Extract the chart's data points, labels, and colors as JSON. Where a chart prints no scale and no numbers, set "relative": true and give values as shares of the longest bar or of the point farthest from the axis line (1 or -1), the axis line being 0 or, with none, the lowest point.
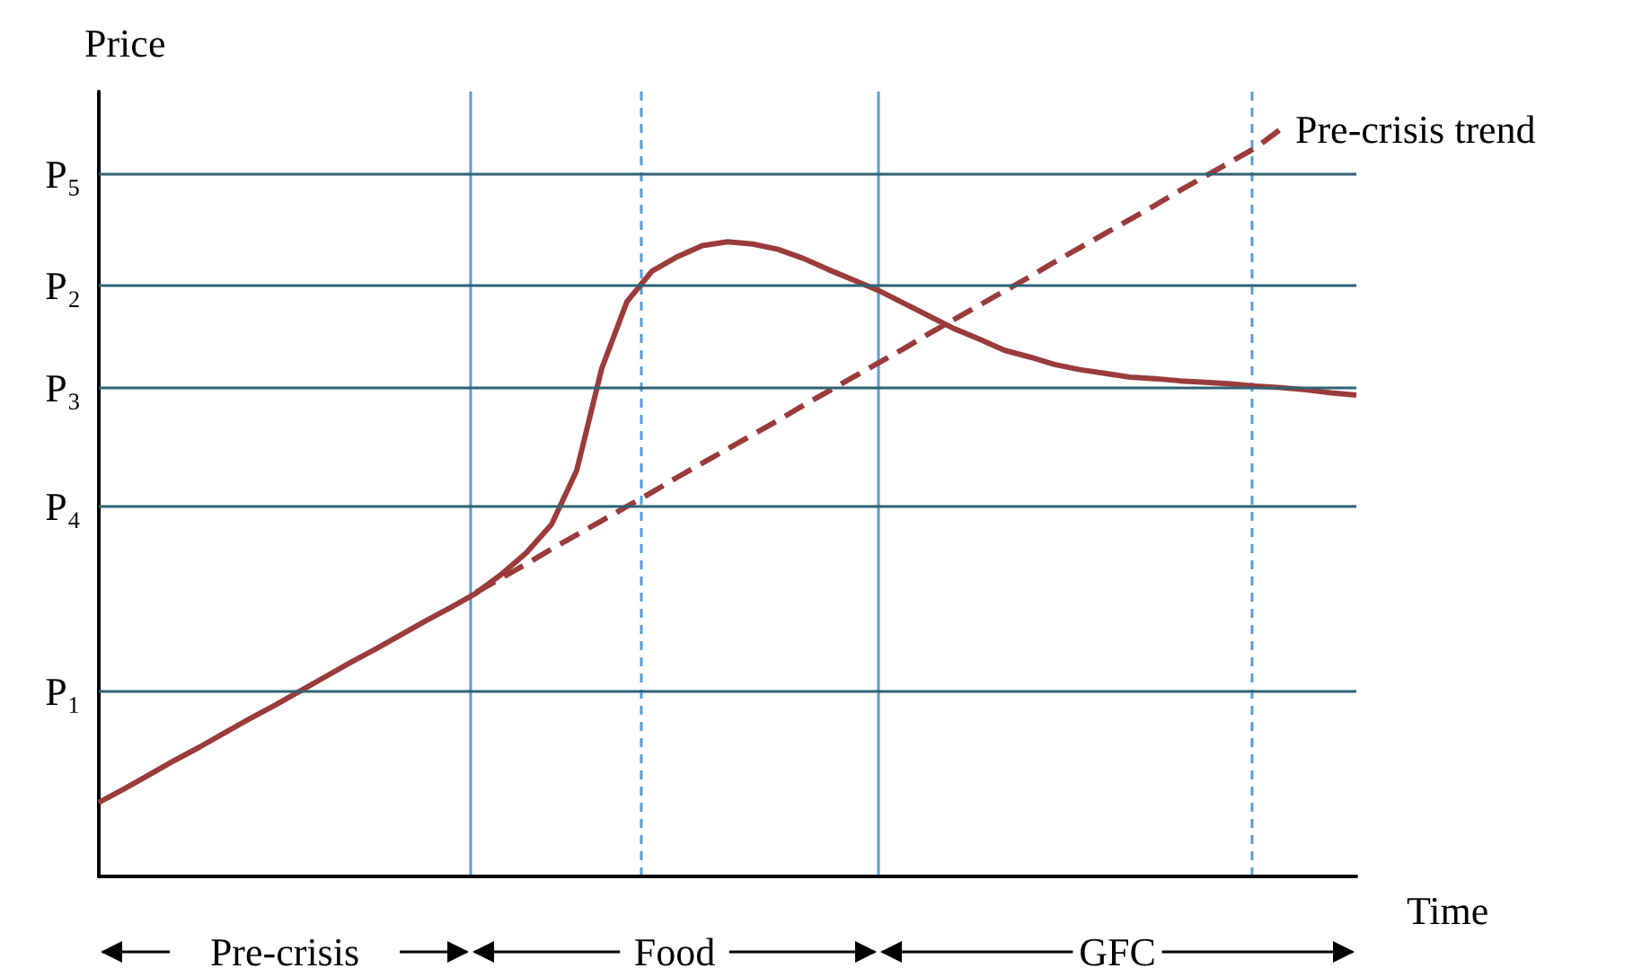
{
  "chart_data": {
    "type": "line",
    "relative": true,
    "xlabel": "Time",
    "ylabel": "Price",
    "categories": [
      null,
      null,
      null,
      null,
      null,
      null,
      null,
      null,
      null,
      null,
      null,
      null,
      null,
      null,
      null,
      null,
      null,
      null,
      null,
      null,
      null,
      null,
      null,
      null,
      null,
      null,
      null,
      null,
      null,
      null,
      null,
      null,
      null,
      null,
      null,
      null,
      null,
      null,
      null,
      null,
      null,
      null,
      null,
      null,
      null,
      null,
      null,
      null,
      null,
      null,
      null
    ],
    "tick_labels": false,
    "legend": false,
    "grid": false,
    "marker": "none",
    "series": [
      {
        "color": "#9b3b3b",
        "line_style": "solid",
        "values": [
          0.099,
          0.117,
          0.136,
          0.155,
          0.173,
          0.192,
          0.211,
          0.229,
          0.248,
          0.267,
          0.286,
          0.304,
          0.323,
          0.342,
          0.36,
          0.379,
          0.404,
          0.433,
          0.471,
          0.543,
          0.68,
          0.769,
          0.81,
          0.829,
          0.844,
          0.849,
          0.846,
          0.839,
          0.827,
          0.812,
          0.798,
          0.784,
          0.767,
          0.75,
          0.733,
          0.719,
          0.704,
          0.695,
          0.685,
          0.678,
          0.673,
          0.668,
          0.666,
          0.663,
          0.661,
          0.659,
          0.656,
          0.654,
          0.651,
          0.647,
          0.644
        ]
      },
      {
        "name": "Pre-crisis trend",
        "color": "#9b3b3b",
        "line_style": "dashed",
        "values": [
          null,
          null,
          null,
          null,
          null,
          null,
          null,
          null,
          null,
          null,
          null,
          null,
          null,
          null,
          null,
          0.38,
          0.399,
          0.418,
          0.438,
          0.457,
          0.476,
          0.495,
          0.514,
          0.534,
          0.553,
          0.572,
          0.591,
          0.61,
          0.63,
          0.649,
          0.668,
          0.687,
          0.706,
          0.726,
          0.745,
          0.764,
          0.783,
          0.802,
          0.822,
          0.841,
          0.86,
          0.879,
          0.898,
          0.918,
          0.937,
          0.956,
          0.975,
          1.0,
          null,
          null,
          null
        ]
      }
    ],
    "ref_lines": [
      {
        "axis": "y",
        "value": 0.94,
        "label": "P₅",
        "color": "#2f6275",
        "line_style": "solid"
      },
      {
        "axis": "y",
        "value": 0.791,
        "label": "P₂",
        "color": "#2f6275",
        "line_style": "solid"
      },
      {
        "axis": "y",
        "value": 0.654,
        "label": "P₃",
        "color": "#2f6275",
        "line_style": "solid"
      },
      {
        "axis": "y",
        "value": 0.495,
        "label": "P₄",
        "color": "#2f6275",
        "line_style": "solid"
      },
      {
        "axis": "y",
        "value": 0.248,
        "label": "P₁",
        "color": "#2f6275",
        "line_style": "solid"
      }
    ],
    "annotations": [
      "Pre-crisis",
      "Food",
      "GFC"
    ]
  }
}
